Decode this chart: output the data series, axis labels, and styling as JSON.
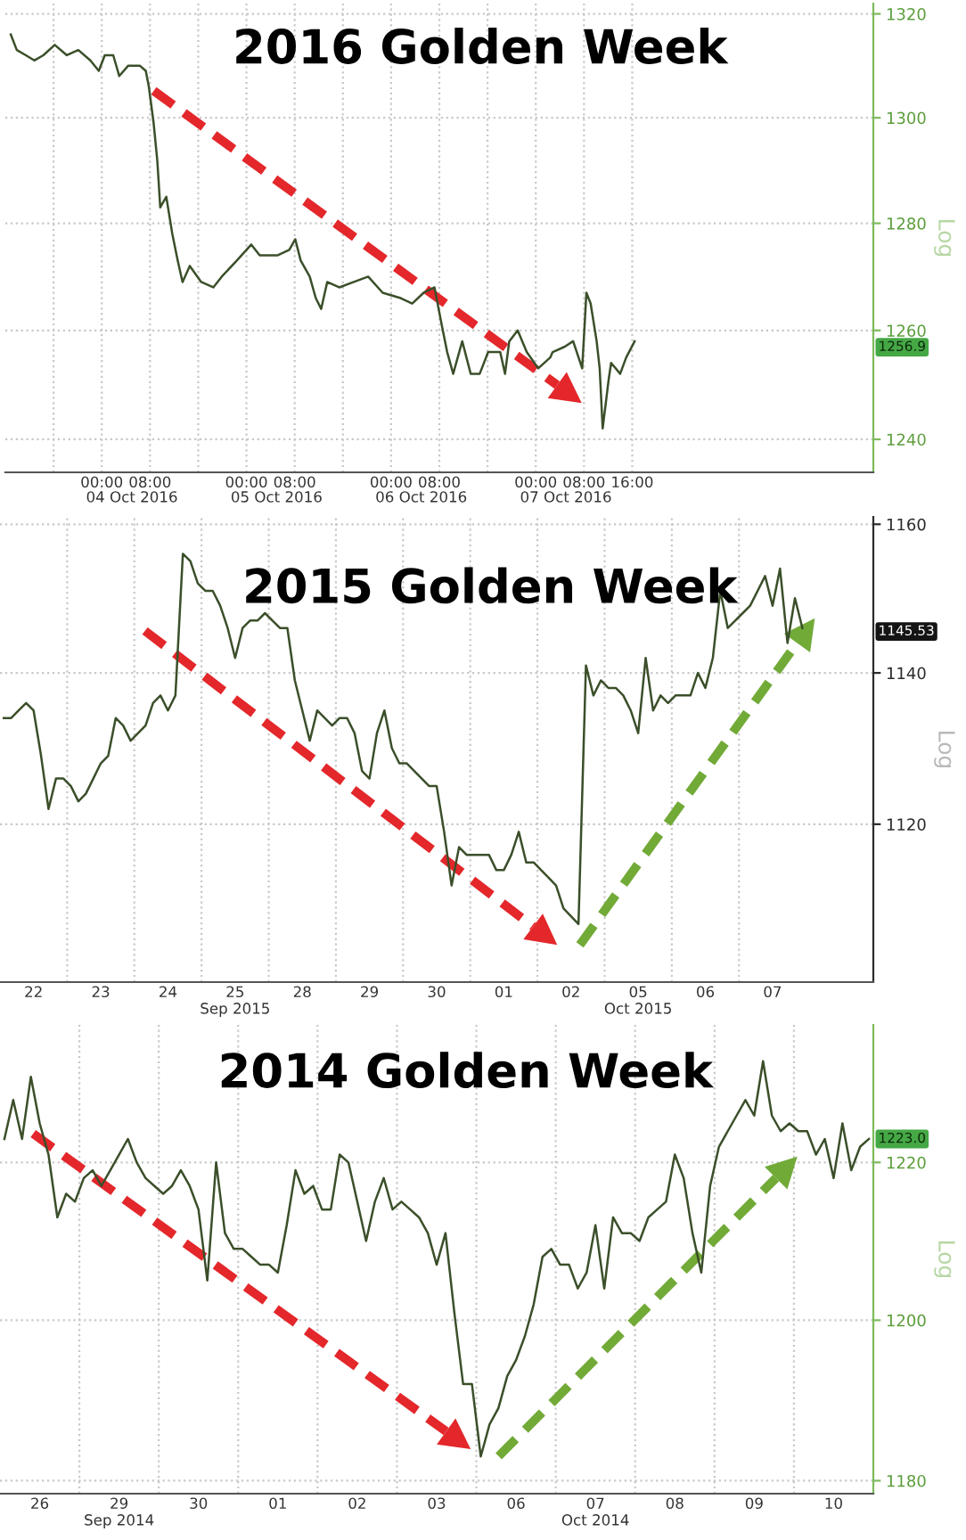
{
  "chart_data": [
    {
      "type": "line",
      "title": "2016 Golden Week",
      "ylabel": "Log",
      "color": "#3b4f2a",
      "log": true,
      "grid": true,
      "x": [
        "2016-10-03T08:54",
        "2016-10-03T09:54",
        "2016-10-03T11:24",
        "2016-10-03T12:48",
        "2016-10-03T14:18",
        "2016-10-03T16:12",
        "2016-10-03T18:12",
        "2016-10-03T20:06",
        "2016-10-03T22:06",
        "2016-10-03T23:30",
        "2016-10-04T00:30",
        "2016-10-04T01:54",
        "2016-10-04T02:54",
        "2016-10-04T04:24",
        "2016-10-04T06:18",
        "2016-10-04T07:18",
        "2016-10-04T07:48",
        "2016-10-04T08:36",
        "2016-10-04T09:12",
        "2016-10-04T09:42",
        "2016-10-04T10:42",
        "2016-10-04T11:42",
        "2016-10-04T12:36",
        "2016-10-04T13:24",
        "2016-10-04T14:36",
        "2016-10-04T16:30",
        "2016-10-04T18:30",
        "2016-10-04T19:54",
        "2016-10-04T22:24",
        "2016-10-05T00:48",
        "2016-10-05T02:12",
        "2016-10-05T05:12",
        "2016-10-05T07:06",
        "2016-10-05T08:06",
        "2016-10-05T09:00",
        "2016-10-05T10:30",
        "2016-10-05T11:30",
        "2016-10-05T12:24",
        "2016-10-05T13:24",
        "2016-10-05T15:24",
        "2016-10-05T17:48",
        "2016-10-05T20:12",
        "2016-10-05T22:36",
        "2016-10-06T01:36",
        "2016-10-06T03:30",
        "2016-10-06T05:24",
        "2016-10-06T07:12",
        "2016-10-06T08:24",
        "2016-10-06T09:18",
        "2016-10-06T10:18",
        "2016-10-06T11:48",
        "2016-10-06T13:12",
        "2016-10-06T14:42",
        "2016-10-06T16:06",
        "2016-10-06T18:06",
        "2016-10-06T18:54",
        "2016-10-06T19:36",
        "2016-10-06T21:00",
        "2016-10-06T22:30",
        "2016-10-07T00:24",
        "2016-10-07T02:24",
        "2016-10-07T02:48",
        "2016-10-07T04:48",
        "2016-10-07T06:12",
        "2016-10-07T07:42",
        "2016-10-07T08:24",
        "2016-10-07T09:06",
        "2016-10-07T10:06",
        "2016-10-07T10:36",
        "2016-10-07T11:06",
        "2016-10-07T12:06",
        "2016-10-07T12:30",
        "2016-10-07T14:00",
        "2016-10-07T15:00",
        "2016-10-07T16:24"
      ],
      "values": [
        1316,
        1313,
        1312,
        1311,
        1312,
        1314,
        1312,
        1313,
        1311,
        1309,
        1312,
        1312,
        1308,
        1310,
        1310,
        1309,
        1306,
        1299,
        1292,
        1283,
        1285,
        1278,
        1273,
        1269,
        1272,
        1269,
        1268,
        1270,
        1273,
        1276,
        1274,
        1274,
        1275,
        1277,
        1273,
        1270,
        1266,
        1264,
        1269,
        1268,
        1269,
        1270,
        1267,
        1266,
        1265,
        1267,
        1268,
        1261,
        1256,
        1252,
        1258,
        1252,
        1252,
        1256,
        1256,
        1252,
        1258,
        1260,
        1256,
        1253,
        1255,
        1256,
        1257,
        1258,
        1253,
        1267,
        1265,
        1258,
        1253,
        1242,
        1251,
        1254,
        1252,
        1255,
        1258
      ],
      "xlim": [
        "2016-10-03T08:00",
        "2016-10-09T08:00"
      ],
      "xticks": [
        {
          "value": "2016-10-03T16:00",
          "label": null
        },
        {
          "value": "2016-10-04T00:00",
          "label": "00:00"
        },
        {
          "value": "2016-10-04T08:00",
          "label": "08:00"
        },
        {
          "value": "2016-10-04T16:00",
          "label": null
        },
        {
          "value": "2016-10-05T00:00",
          "label": "00:00"
        },
        {
          "value": "2016-10-05T08:00",
          "label": "08:00"
        },
        {
          "value": "2016-10-05T16:00",
          "label": null
        },
        {
          "value": "2016-10-06T00:00",
          "label": "00:00"
        },
        {
          "value": "2016-10-06T08:00",
          "label": "08:00"
        },
        {
          "value": "2016-10-06T16:00",
          "label": null
        },
        {
          "value": "2016-10-07T00:00",
          "label": "00:00"
        },
        {
          "value": "2016-10-07T08:00",
          "label": "08:00"
        },
        {
          "value": "2016-10-07T16:00",
          "label": "16:00"
        }
      ],
      "x2lim": [
        "2016-10-03T08:00",
        "2016-10-09T08:00"
      ],
      "x2ticks": [
        {
          "value": "2016-10-04T05:00",
          "label": "04 Oct 2016"
        },
        {
          "value": "2016-10-05T05:00",
          "label": "05 Oct 2016"
        },
        {
          "value": "2016-10-06T05:00",
          "label": "06 Oct 2016"
        },
        {
          "value": "2016-10-07T05:00",
          "label": "07 Oct 2016"
        }
      ],
      "ylim": [
        1234,
        1322
      ],
      "yticks": [
        1240,
        1260,
        1280,
        1300,
        1320
      ],
      "annotations": [
        {
          "text": "1256.9",
          "y": 1256.9
        }
      ]
    },
    {
      "type": "line",
      "title": "2015 Golden Week",
      "ylabel": "Log",
      "color": "#3b4f2a",
      "log": true,
      "grid": true,
      "categories": [
        null,
        null,
        null,
        null,
        "22",
        null,
        null,
        null,
        null,
        null,
        null,
        null,
        null,
        "23",
        null,
        null,
        null,
        null,
        null,
        null,
        null,
        null,
        "24",
        null,
        null,
        null,
        null,
        null,
        null,
        null,
        null,
        "25\nSep 2015",
        null,
        null,
        null,
        null,
        null,
        null,
        null,
        null,
        "28",
        null,
        null,
        null,
        null,
        null,
        null,
        null,
        null,
        "29",
        null,
        null,
        null,
        null,
        null,
        null,
        null,
        null,
        "30",
        null,
        null,
        null,
        null,
        null,
        null,
        null,
        null,
        "01",
        null,
        null,
        null,
        null,
        null,
        null,
        null,
        null,
        "02",
        null,
        null,
        null,
        null,
        null,
        null,
        null,
        null,
        "05\nOct 2015",
        null,
        null,
        null,
        null,
        null,
        null,
        null,
        null,
        "06",
        null,
        null,
        null,
        null,
        null,
        null,
        null,
        null,
        "07",
        null,
        null,
        null,
        null,
        null,
        null,
        null,
        null,
        null,
        null,
        null,
        null,
        null
      ],
      "values": [
        1134,
        1134,
        1135,
        1136,
        1135,
        1129,
        1122,
        1126,
        1126,
        1125,
        1123,
        1124,
        1126,
        1128,
        1129,
        1134,
        1133,
        1131,
        1132,
        1133,
        1136,
        1137,
        1135,
        1137,
        1156,
        1155,
        1152,
        1151,
        1151,
        1149,
        1146,
        1142,
        1146,
        1147,
        1147,
        1148,
        1147,
        1146,
        1146,
        1139,
        1135,
        1131,
        1135,
        1134,
        1133,
        1134,
        1134,
        1132,
        1127,
        1126,
        1132,
        1135,
        1130,
        1128,
        1128,
        1127,
        1126,
        1125,
        1125,
        1119,
        1112,
        1117,
        1116,
        1116,
        1116,
        1116,
        1114,
        1114,
        1116,
        1119,
        1115,
        1115,
        1114,
        1113,
        1112,
        1109,
        1108,
        1107,
        1141,
        1137,
        1139,
        1138,
        1138,
        1137,
        1135,
        1132,
        1142,
        1135,
        1137,
        1136,
        1137,
        1137,
        1137,
        1140,
        1138,
        1142,
        1151,
        1146,
        1147,
        1148,
        1149,
        1151,
        1153,
        1149,
        1154,
        1144,
        1150,
        1146,
        null,
        null,
        null,
        null,
        null,
        null,
        null,
        null,
        null
      ],
      "ylim": [
        1099.5,
        1161
      ],
      "yticks": [
        1120,
        1140,
        1160
      ],
      "annotations": [
        {
          "text": "1145.53",
          "y": 1145.53
        }
      ]
    },
    {
      "type": "line",
      "title": "2014 Golden Week",
      "ylabel": "Log",
      "color": "#3b4f2a",
      "log": true,
      "grid": true,
      "categories": [
        null,
        null,
        null,
        null,
        "26",
        null,
        null,
        null,
        null,
        null,
        null,
        null,
        null,
        "29\nSep 2014",
        null,
        null,
        null,
        null,
        null,
        null,
        null,
        null,
        "30",
        null,
        null,
        null,
        null,
        null,
        null,
        null,
        null,
        "01",
        null,
        null,
        null,
        null,
        null,
        null,
        null,
        null,
        "02",
        null,
        null,
        null,
        null,
        null,
        null,
        null,
        null,
        "03",
        null,
        null,
        null,
        null,
        null,
        null,
        null,
        null,
        "06",
        null,
        null,
        null,
        null,
        null,
        null,
        null,
        null,
        "07\nOct 2014",
        null,
        null,
        null,
        null,
        null,
        null,
        null,
        null,
        "08",
        null,
        null,
        null,
        null,
        null,
        null,
        null,
        null,
        "09",
        null,
        null,
        null,
        null,
        null,
        null,
        null,
        null,
        "10",
        null,
        null,
        null,
        null
      ],
      "values": [
        1223,
        1228,
        1223,
        1231,
        1225,
        1221,
        1213,
        1216,
        1215,
        1218,
        1219,
        1217,
        1219,
        1221,
        1223,
        1220,
        1218,
        1217,
        1216,
        1217,
        1219,
        1217,
        1214,
        1205,
        1220,
        1211,
        1209,
        1209,
        1208,
        1207,
        1207,
        1206,
        1212,
        1219,
        1216,
        1217,
        1214,
        1214,
        1221,
        1220,
        1215,
        1210,
        1215,
        1218,
        1214,
        1215,
        1214,
        1213,
        1211,
        1207,
        1211,
        1201,
        1192,
        1192,
        1183,
        1187,
        1189,
        1193,
        1195,
        1198,
        1202,
        1208,
        1209,
        1207,
        1207,
        1204,
        1206,
        1212,
        1204,
        1213,
        1211,
        1211,
        1210,
        1213,
        1214,
        1215,
        1221,
        1218,
        1211,
        1206,
        1217,
        1222,
        1224,
        1226,
        1228,
        1226,
        1233,
        1226,
        1224,
        1225,
        1224,
        1224,
        1221,
        1223,
        1218,
        1225,
        1219,
        1222,
        1223
      ],
      "ylim": [
        1178.4,
        1237.7
      ],
      "yticks": [
        1180,
        1200,
        1220
      ],
      "annotations": [
        {
          "text": "1223.0",
          "y": 1223.0
        }
      ]
    }
  ]
}
